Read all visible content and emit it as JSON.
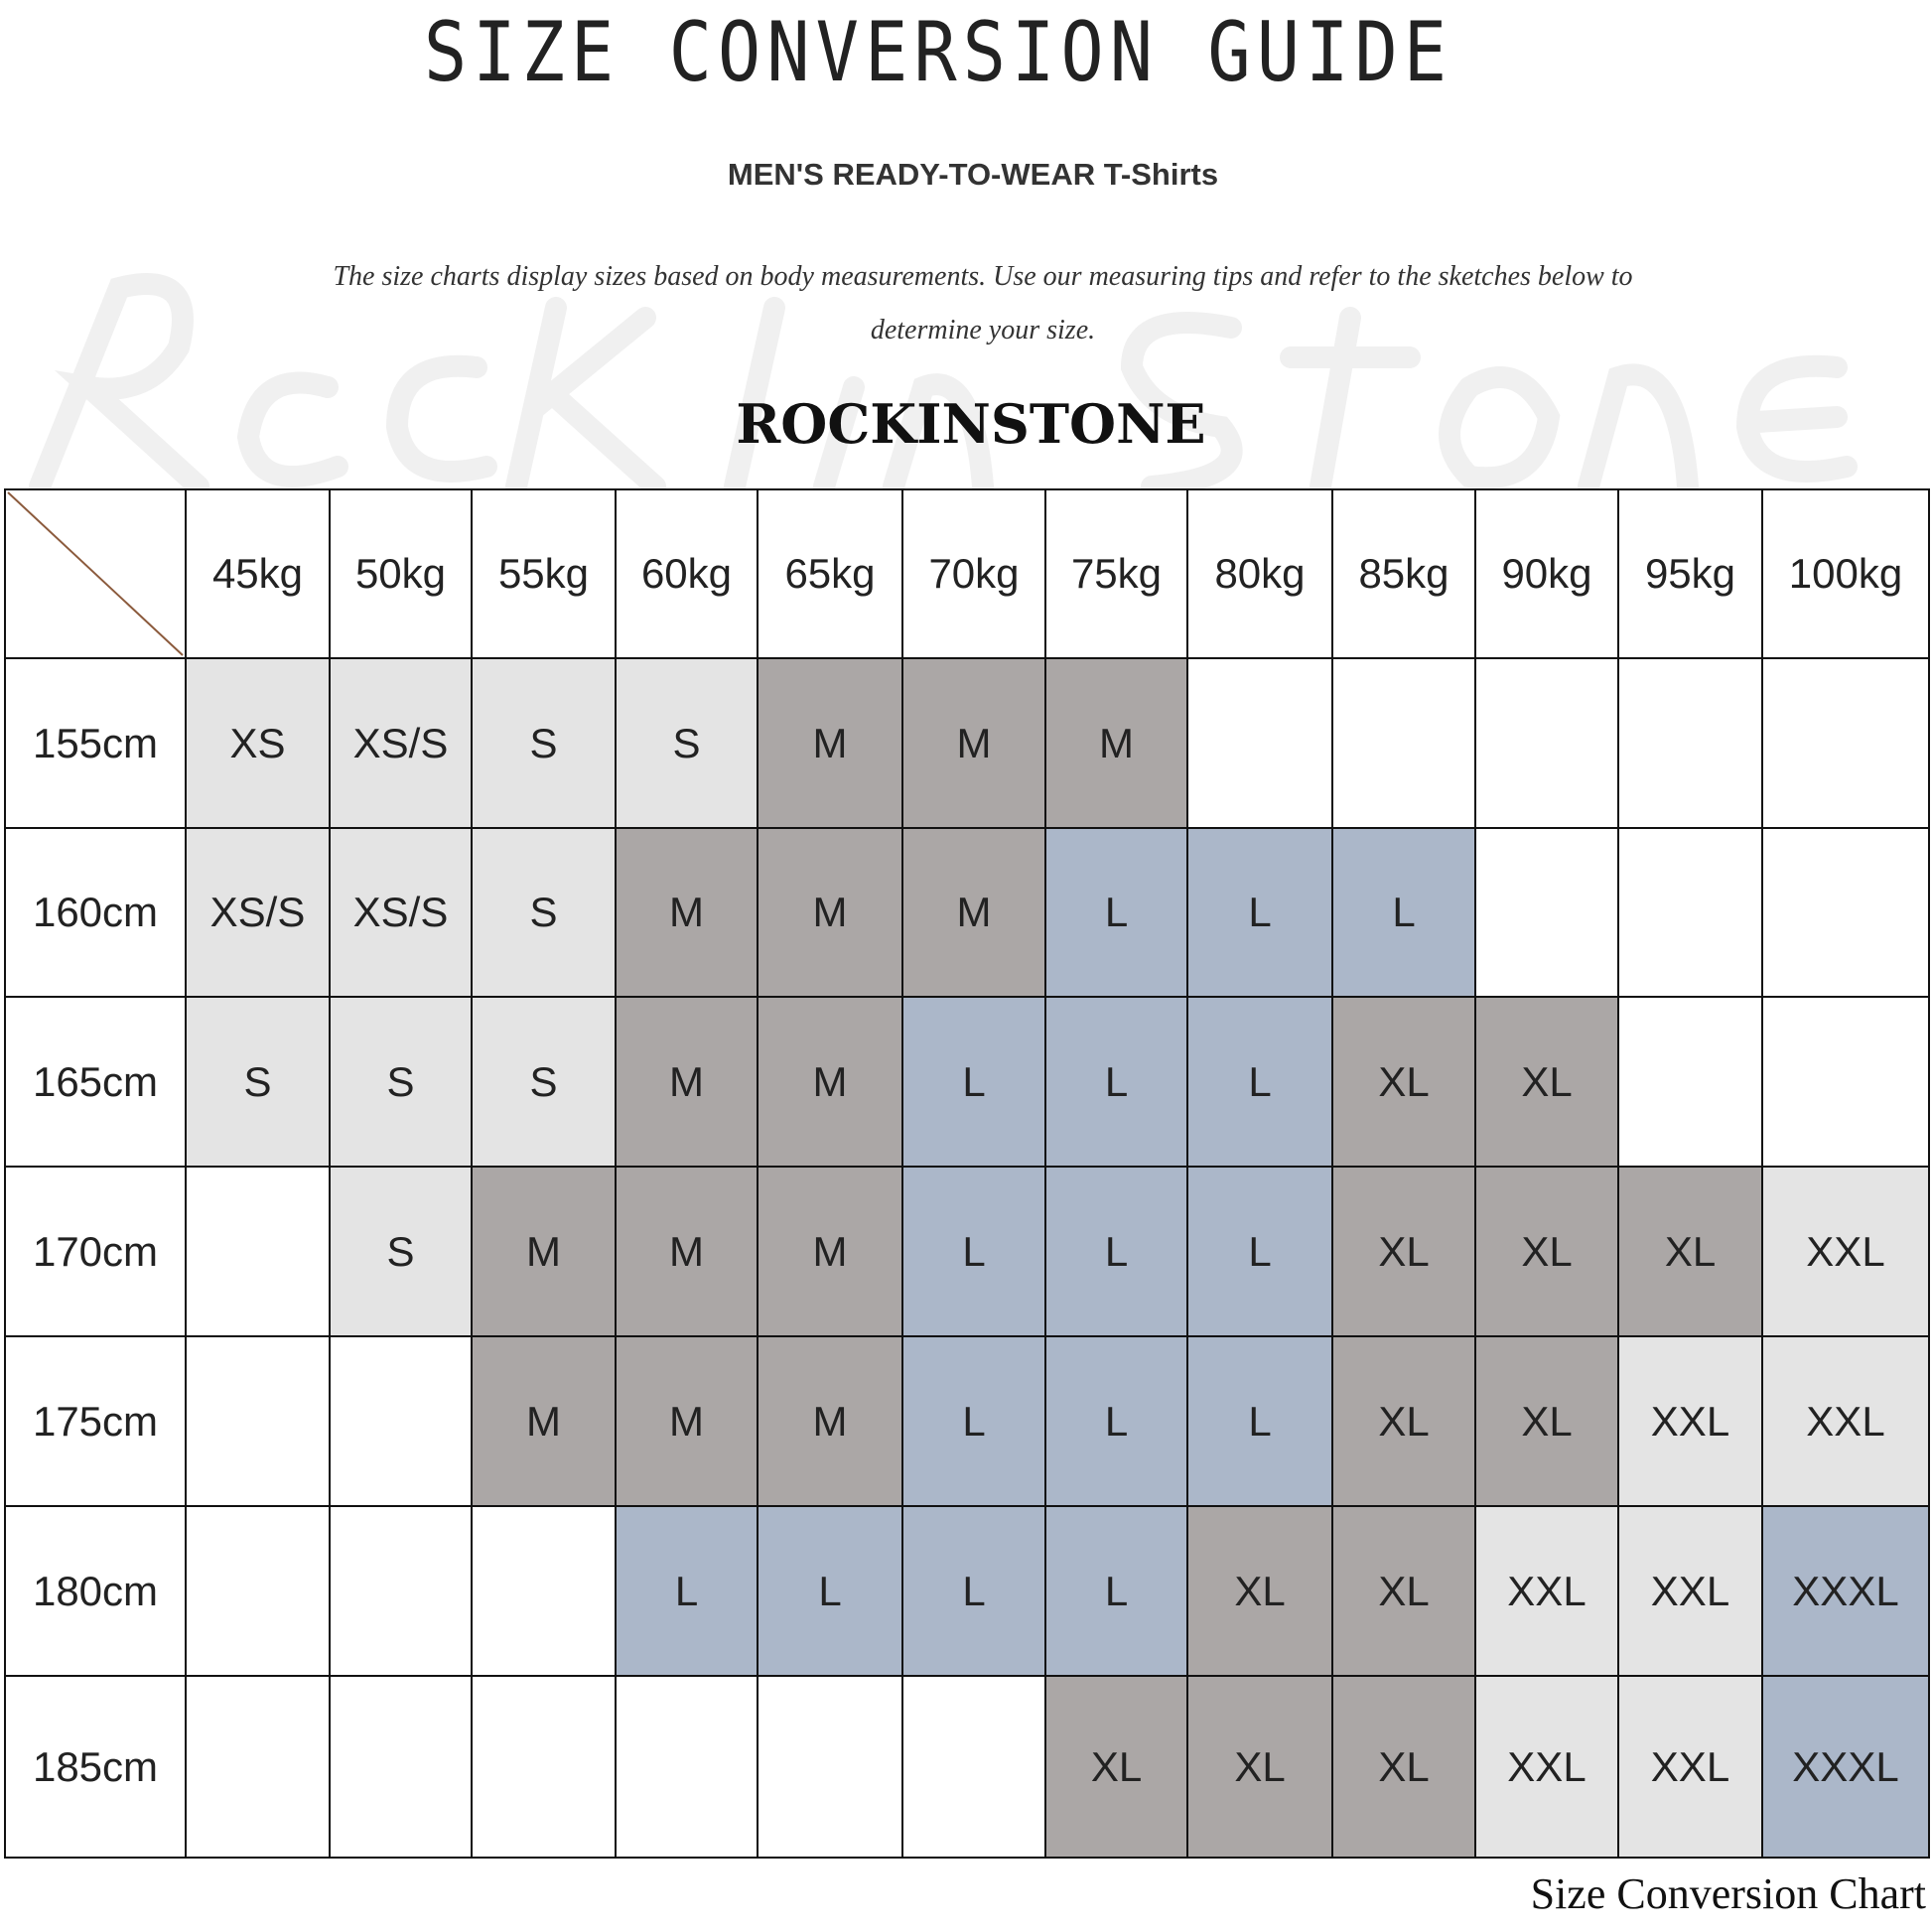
{
  "header": {
    "title": "SIZE CONVERSION GUIDE",
    "subtitle": "MEN'S READY-TO-WEAR T-Shirts",
    "intro": "The size charts display sizes based on body measurements. Use our measuring tips and refer to the sketches below to determine your size.",
    "brand": "ROCKINSTONE",
    "watermark": "Rockinstone"
  },
  "colors": {
    "light": "#e4e4e4",
    "dark": "#aba7a6",
    "blue": "#abb7c9",
    "white": "#ffffff",
    "border": "#111111",
    "corner_line": "#8b5a3c"
  },
  "size_colors": {
    "XS": "light",
    "XS/S": "light",
    "S": "light",
    "M": "dark",
    "L": "blue",
    "XL": "dark",
    "XXL": "light",
    "XXXL": "blue",
    "": "white"
  },
  "table": {
    "columns": [
      "45kg",
      "50kg",
      "55kg",
      "60kg",
      "65kg",
      "70kg",
      "75kg",
      "80kg",
      "85kg",
      "90kg",
      "95kg",
      "100kg"
    ],
    "rows": [
      {
        "label": "155cm",
        "cells": [
          "XS",
          "XS/S",
          "S",
          "S",
          "M",
          "M",
          "M",
          "",
          "",
          "",
          "",
          ""
        ]
      },
      {
        "label": "160cm",
        "cells": [
          "XS/S",
          "XS/S",
          "S",
          "M",
          "M",
          "M",
          "L",
          "L",
          "L",
          "",
          "",
          ""
        ]
      },
      {
        "label": "165cm",
        "cells": [
          "S",
          "S",
          "S",
          "M",
          "M",
          "L",
          "L",
          "L",
          "XL",
          "XL",
          "",
          ""
        ]
      },
      {
        "label": "170cm",
        "cells": [
          "",
          "S",
          "M",
          "M",
          "M",
          "L",
          "L",
          "L",
          "XL",
          "XL",
          "XL",
          "XXL"
        ]
      },
      {
        "label": "175cm",
        "cells": [
          "",
          "",
          "M",
          "M",
          "M",
          "L",
          "L",
          "L",
          "XL",
          "XL",
          "XXL",
          "XXL"
        ]
      },
      {
        "label": "180cm",
        "cells": [
          "",
          "",
          "",
          "L",
          "L",
          "L",
          "L",
          "XL",
          "XL",
          "XXL",
          "XXL",
          "XXXL"
        ]
      },
      {
        "label": "185cm",
        "cells": [
          "",
          "",
          "",
          "",
          "",
          "",
          "XL",
          "XL",
          "XL",
          "XXL",
          "XXL",
          "XXXL"
        ]
      }
    ]
  },
  "footer": "Size Conversion Chart"
}
